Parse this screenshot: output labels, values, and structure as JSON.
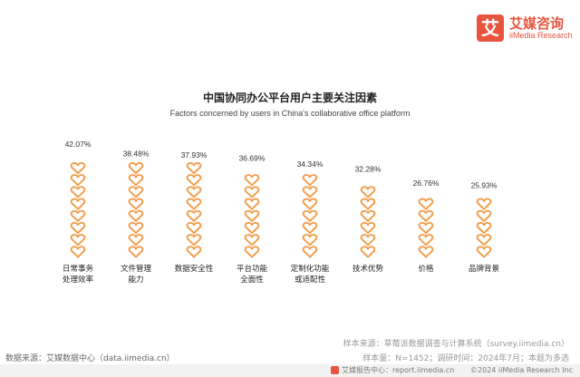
{
  "brand": {
    "logo_glyph": "艾",
    "name_cn": "艾媒咨询",
    "name_en": "iiMedia Research",
    "color": "#e8553f"
  },
  "chart_data": {
    "type": "bar",
    "title": "中国协同办公平台用户主要关注因素",
    "subtitle": "Factors concerned by users in China's collaborative office platform",
    "categories": [
      "日常事务\n处理效率",
      "文件管理\n能力",
      "数据安全性",
      "平台功能\n全面性",
      "定制化功能\n或适配性",
      "技术优势",
      "价格",
      "品牌背景"
    ],
    "values": [
      42.07,
      38.48,
      37.93,
      36.69,
      34.34,
      32.28,
      26.76,
      25.93
    ],
    "value_labels": [
      "42.07%",
      "38.48%",
      "37.93%",
      "36.69%",
      "34.34%",
      "32.28%",
      "26.76%",
      "25.93%"
    ],
    "unit": "%",
    "ylim": [
      0,
      45
    ],
    "marker": "heart-outline",
    "color": "#f0a050",
    "grid": false
  },
  "notes": {
    "sample_source": "样本来源：草莓派数据调查与计算系统（survey.iimedia.cn）",
    "sample_size": "样本量：N=1452；调研时间：2024年7月；本题为多选",
    "data_source": "数据来源：艾媒数据中心（data.iimedia.cn）"
  },
  "footer": {
    "report_center": "艾媒报告中心：report.iimedia.cn",
    "copyright": "©2024  iiMedia Research  Inc"
  }
}
